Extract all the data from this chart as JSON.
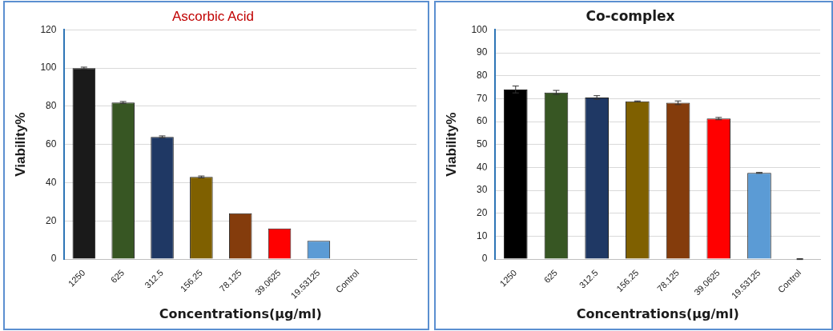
{
  "chart_data": [
    {
      "type": "bar",
      "title": "Ascorbic Acid",
      "xlabel": "Concentrations(µg/ml)",
      "ylabel": "Viability%",
      "categories": [
        "1250",
        "625",
        "312.5",
        "156.25",
        "78.125",
        "39.0625",
        "19.53125",
        "Control",
        null
      ],
      "values": [
        100,
        82,
        64,
        43,
        24,
        16,
        9.5,
        null,
        null
      ],
      "errors": [
        0.5,
        0.5,
        0.5,
        0.5,
        null,
        null,
        null,
        null,
        null
      ],
      "colors": [
        "#1a1a1a",
        "#375623",
        "#1f3864",
        "#7f6000",
        "#843c0c",
        "#ff0000",
        "#5b9bd5",
        "#cccccc",
        "#cccccc"
      ],
      "ylim": [
        0,
        120
      ],
      "yticks": [
        0,
        20,
        40,
        60,
        80,
        100,
        120
      ],
      "grid": "y"
    },
    {
      "type": "bar",
      "title": "Co-complex",
      "xlabel": "Concentrations(µg/ml)",
      "ylabel": "Viability%",
      "categories": [
        "1250",
        "625",
        "312.5",
        "156.25",
        "78.125",
        "39.0625",
        "19.53125",
        "Control"
      ],
      "values": [
        74,
        72.7,
        70.5,
        68.8,
        68.2,
        61.3,
        37.6,
        0
      ],
      "errors": [
        1.5,
        0.9,
        0.8,
        0.2,
        0.8,
        0.5,
        0.2,
        0.2
      ],
      "colors": [
        "#000000",
        "#375623",
        "#1f3864",
        "#7f6000",
        "#843c0c",
        "#ff0000",
        "#5b9bd5",
        "#5b9bd5"
      ],
      "ylim": [
        0,
        100
      ],
      "yticks": [
        0,
        10,
        20,
        30,
        40,
        50,
        60,
        70,
        80,
        90,
        100
      ],
      "grid": "y"
    }
  ]
}
